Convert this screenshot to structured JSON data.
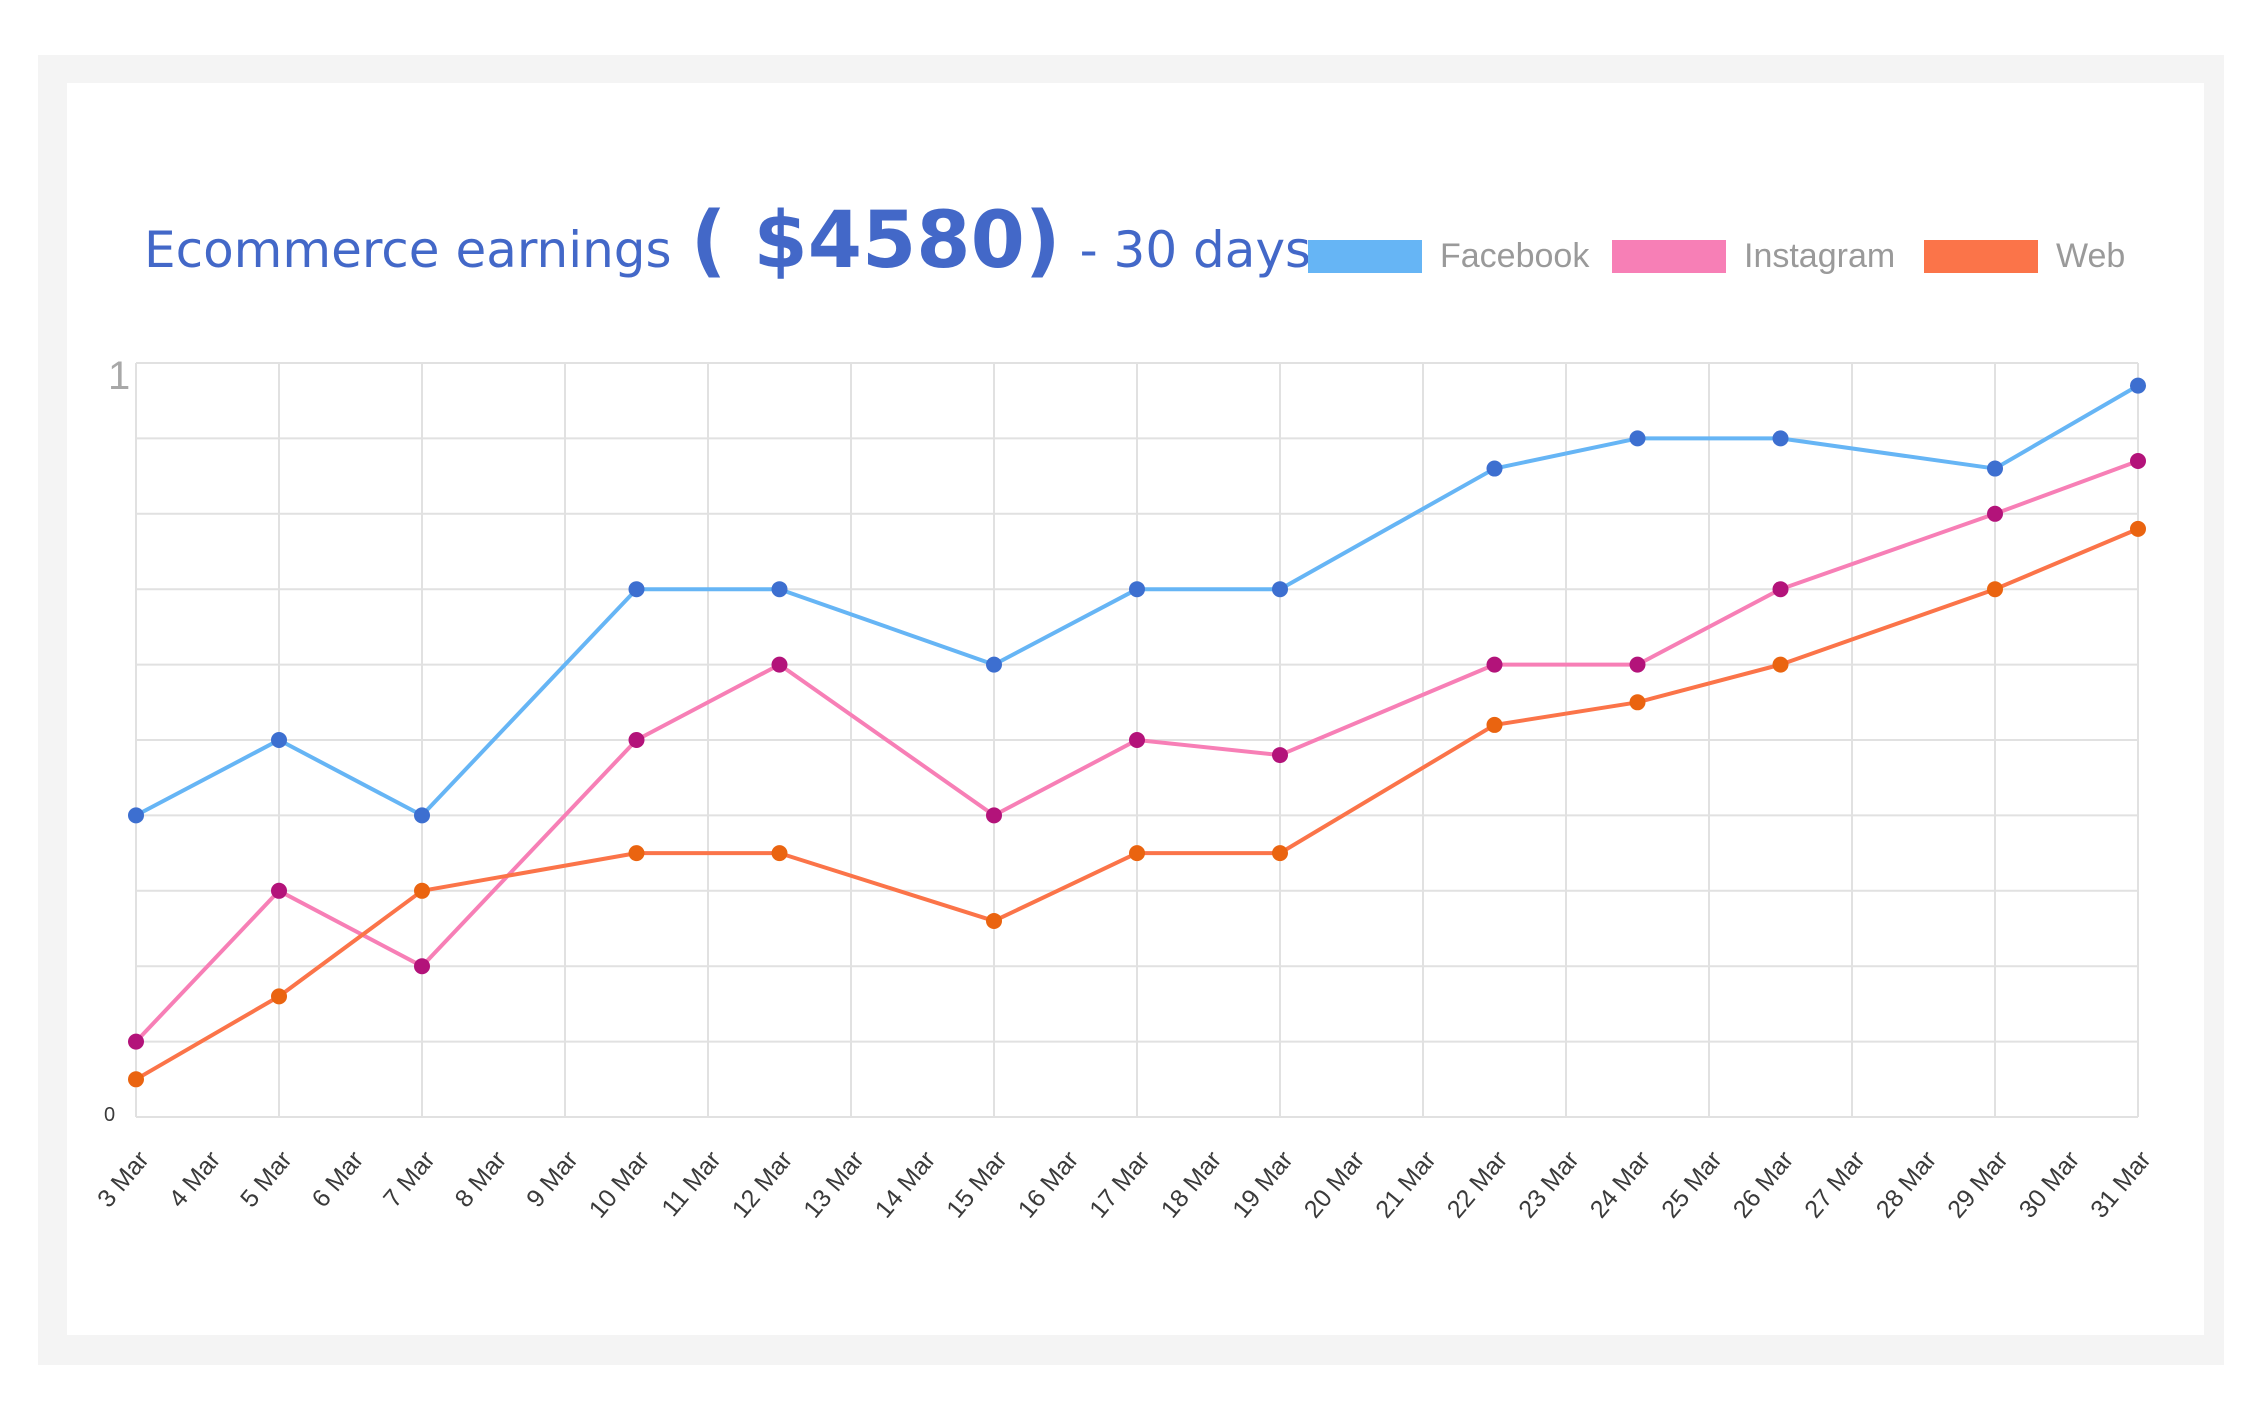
{
  "chart_data": {
    "type": "line",
    "title": "Ecommerce earnings",
    "title_amount": "( $4580)",
    "title_suffix": "- 30 days",
    "x": [
      "3 Mar",
      "4 Mar",
      "5 Mar",
      "6 Mar",
      "7 Mar",
      "8 Mar",
      "9 Mar",
      "10 Mar",
      "11 Mar",
      "12 Mar",
      "13 Mar",
      "14 Mar",
      "15 Mar",
      "16 Mar",
      "17 Mar",
      "18 Mar",
      "19 Mar",
      "20 Mar",
      "21 Mar",
      "22 Mar",
      "23 Mar",
      "24 Mar",
      "25 Mar",
      "26 Mar",
      "27 Mar",
      "28 Mar",
      "29 Mar",
      "30 Mar",
      "31 Mar"
    ],
    "y_tick_labels": {
      "top": "1",
      "bottom": "0"
    },
    "ylim": [
      0,
      1
    ],
    "grid": true,
    "legend_position": "top-right",
    "series": [
      {
        "name": "Facebook",
        "color": "#66b5f5",
        "marker_color": "#3d6fd0",
        "points": [
          [
            "3 Mar",
            0.4
          ],
          [
            "5 Mar",
            0.5
          ],
          [
            "7 Mar",
            0.4
          ],
          [
            "10 Mar",
            0.7
          ],
          [
            "12 Mar",
            0.7
          ],
          [
            "15 Mar",
            0.6
          ],
          [
            "17 Mar",
            0.7
          ],
          [
            "19 Mar",
            0.7
          ],
          [
            "22 Mar",
            0.86
          ],
          [
            "24 Mar",
            0.9
          ],
          [
            "26 Mar",
            0.9
          ],
          [
            "29 Mar",
            0.86
          ],
          [
            "31 Mar",
            0.97
          ]
        ]
      },
      {
        "name": "Instagram",
        "color": "#f77fb6",
        "marker_color": "#b3137a",
        "points": [
          [
            "3 Mar",
            0.1
          ],
          [
            "5 Mar",
            0.3
          ],
          [
            "7 Mar",
            0.2
          ],
          [
            "10 Mar",
            0.5
          ],
          [
            "12 Mar",
            0.6
          ],
          [
            "15 Mar",
            0.4
          ],
          [
            "17 Mar",
            0.5
          ],
          [
            "19 Mar",
            0.48
          ],
          [
            "22 Mar",
            0.6
          ],
          [
            "24 Mar",
            0.6
          ],
          [
            "26 Mar",
            0.7
          ],
          [
            "29 Mar",
            0.8
          ],
          [
            "31 Mar",
            0.87
          ]
        ]
      },
      {
        "name": "Web",
        "color": "#fb7449",
        "marker_color": "#ea6410",
        "points": [
          [
            "3 Mar",
            0.05
          ],
          [
            "5 Mar",
            0.16
          ],
          [
            "7 Mar",
            0.3
          ],
          [
            "10 Mar",
            0.35
          ],
          [
            "12 Mar",
            0.35
          ],
          [
            "15 Mar",
            0.26
          ],
          [
            "17 Mar",
            0.35
          ],
          [
            "19 Mar",
            0.35
          ],
          [
            "22 Mar",
            0.52
          ],
          [
            "24 Mar",
            0.55
          ],
          [
            "26 Mar",
            0.6
          ],
          [
            "29 Mar",
            0.7
          ],
          [
            "31 Mar",
            0.78
          ]
        ]
      }
    ]
  }
}
